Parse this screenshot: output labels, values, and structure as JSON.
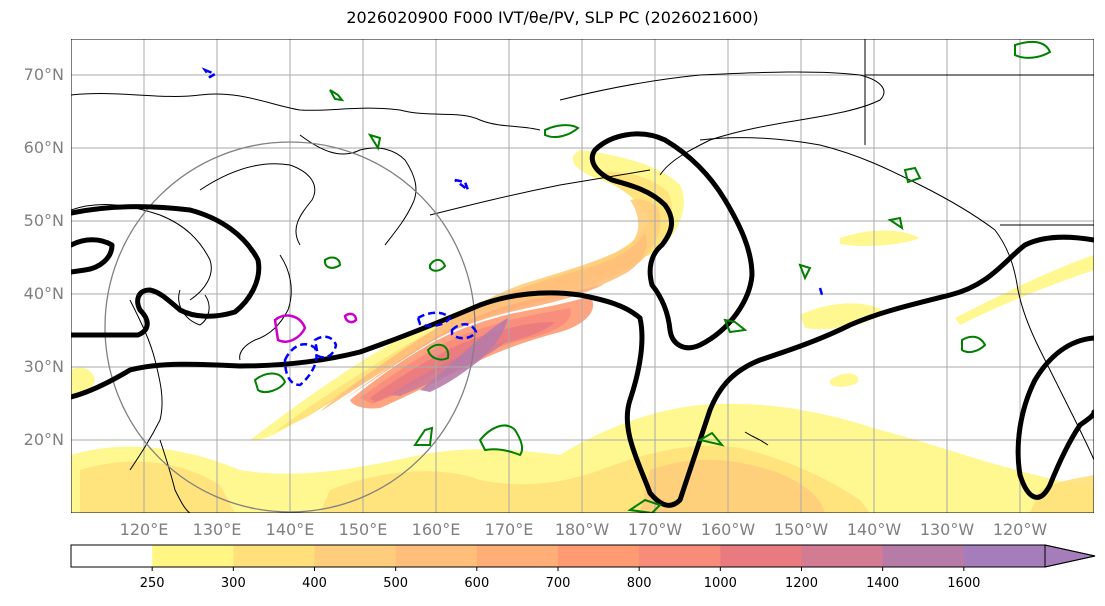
{
  "title": "2026020900 F000 IVT/θe/PV, SLP PC (2026021600)",
  "lat_labels": [
    "70°N",
    "60°N",
    "50°N",
    "40°N",
    "30°N",
    "20°N"
  ],
  "lon_labels": [
    "120°E",
    "130°E",
    "140°E",
    "150°E",
    "160°E",
    "170°E",
    "180°W",
    "170°W",
    "160°W",
    "150°W",
    "140°W",
    "130°W",
    "120°W"
  ],
  "colorbar": {
    "levels": [
      "250",
      "300",
      "400",
      "500",
      "600",
      "700",
      "800",
      "1000",
      "1200",
      "1400",
      "1600"
    ],
    "colors": [
      "#ffffff",
      "#fff683",
      "#ffe07a",
      "#ffcd7b",
      "#ffbf7a",
      "#ffae77",
      "#ff9a73",
      "#f78c7a",
      "#e97a80",
      "#d37b93",
      "#b77ba8",
      "#a67dbb"
    ],
    "extend": "max"
  },
  "map_style": {
    "ivt_colors": [
      "#fff683",
      "#ffe07a",
      "#ffcd7b",
      "#ffbf7a",
      "#ffae77",
      "#ff9a73",
      "#f78c7a",
      "#e97a80",
      "#d37b93",
      "#b77ba8"
    ],
    "slp_contour_color": "#000000",
    "pv_contour_color": "#008000",
    "theta_e_negative_color": "#0000ff",
    "theta_e_positive_color": "#cc00cc",
    "range_ring_color": "#808080"
  }
}
